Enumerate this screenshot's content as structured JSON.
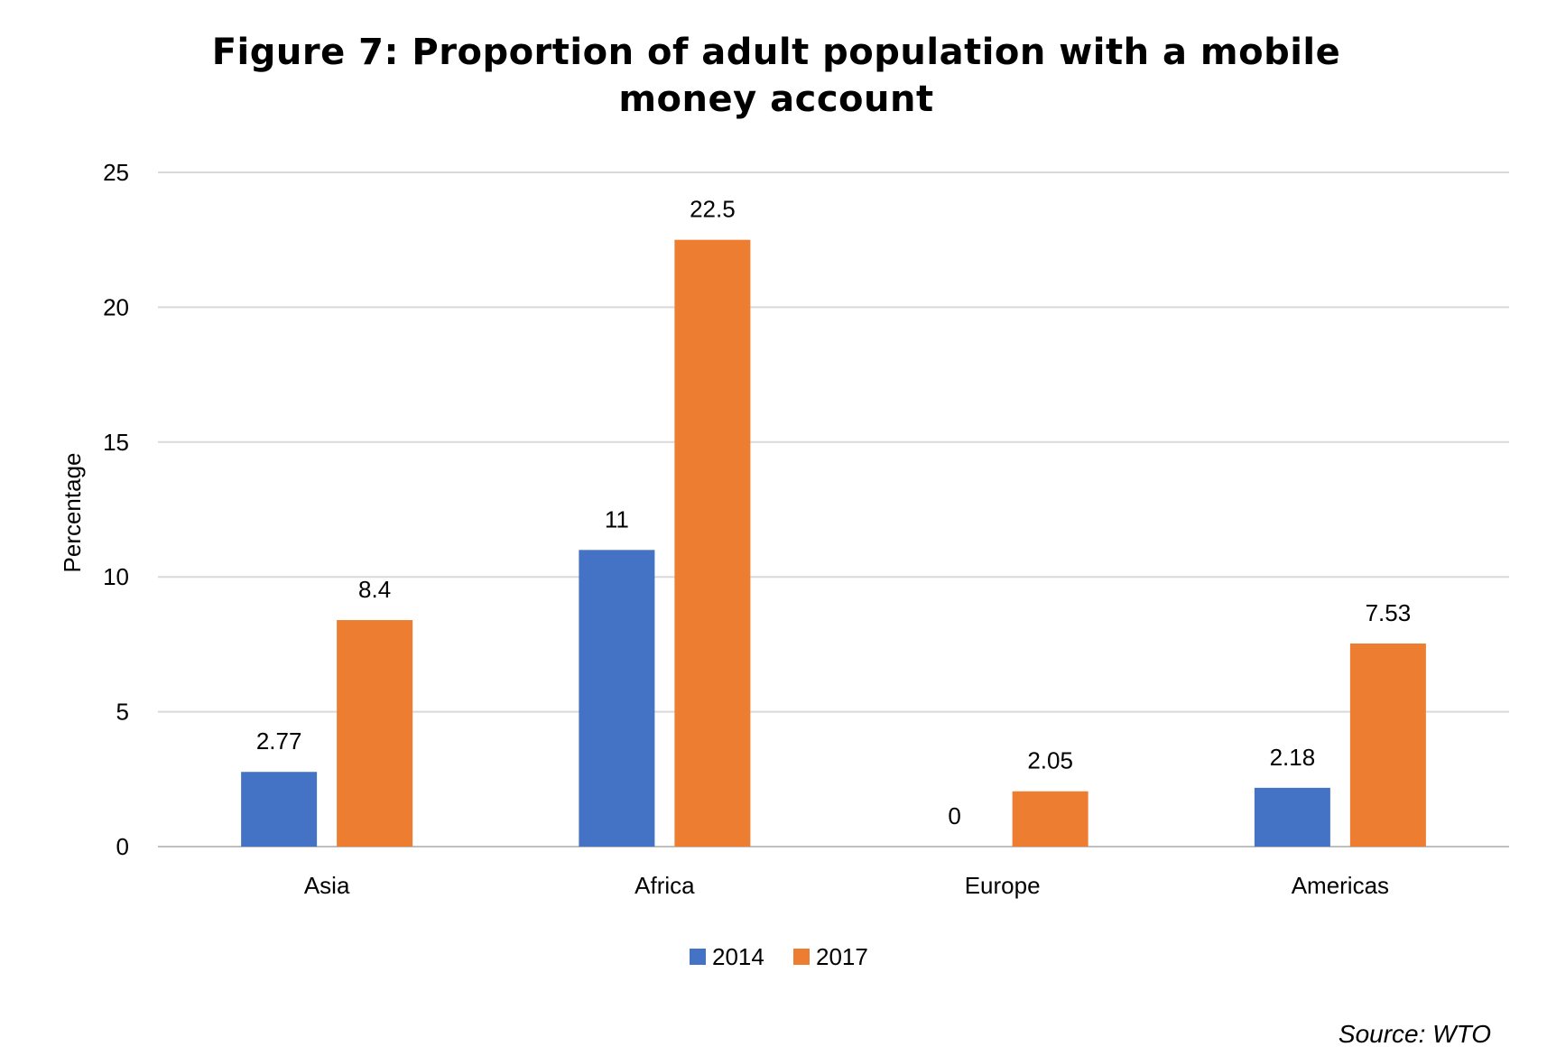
{
  "chart_data": {
    "type": "bar",
    "title": "Figure 7: Proportion of adult population with a mobile\nmoney account",
    "categories": [
      "Asia",
      "Africa",
      "Europe",
      "Americas"
    ],
    "series": [
      {
        "name": "2014",
        "color": "#4472C4",
        "values": [
          2.77,
          11,
          0,
          2.18
        ],
        "labels": [
          "2.77",
          "11",
          "0",
          "2.18"
        ]
      },
      {
        "name": "2017",
        "color": "#ED7D31",
        "values": [
          8.4,
          22.5,
          2.05,
          7.53
        ],
        "labels": [
          "8.4",
          "22.5",
          "2.05",
          "7.53"
        ]
      }
    ],
    "ylabel": "Percentage",
    "xlabel": "",
    "ylim": [
      0,
      25
    ],
    "yticks": [
      0,
      5,
      10,
      15,
      20,
      25
    ],
    "grid": true,
    "legend_position": "bottom-center"
  },
  "source": "Source: WTO"
}
